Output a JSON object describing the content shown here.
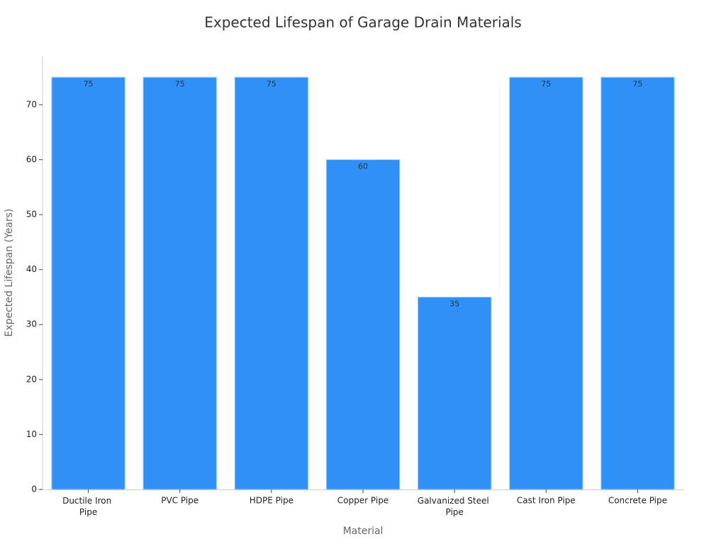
{
  "chart_data": {
    "type": "bar",
    "title": "Expected Lifespan of Garage Drain Materials",
    "x_label": "Material",
    "y_label": "Expected Lifespan (Years)",
    "categories": [
      "Ductile Iron Pipe",
      "PVC Pipe",
      "HDPE Pipe",
      "Copper Pipe",
      "Galvanized Steel Pipe",
      "Cast Iron Pipe",
      "Concrete Pipe"
    ],
    "values": [
      75,
      75,
      75,
      60,
      35,
      75,
      75
    ],
    "color": "#2f91f8",
    "ylim": [
      0,
      78.75
    ],
    "yticks": [
      0,
      10,
      20,
      30,
      40,
      50,
      60,
      70
    ],
    "grid": false
  }
}
